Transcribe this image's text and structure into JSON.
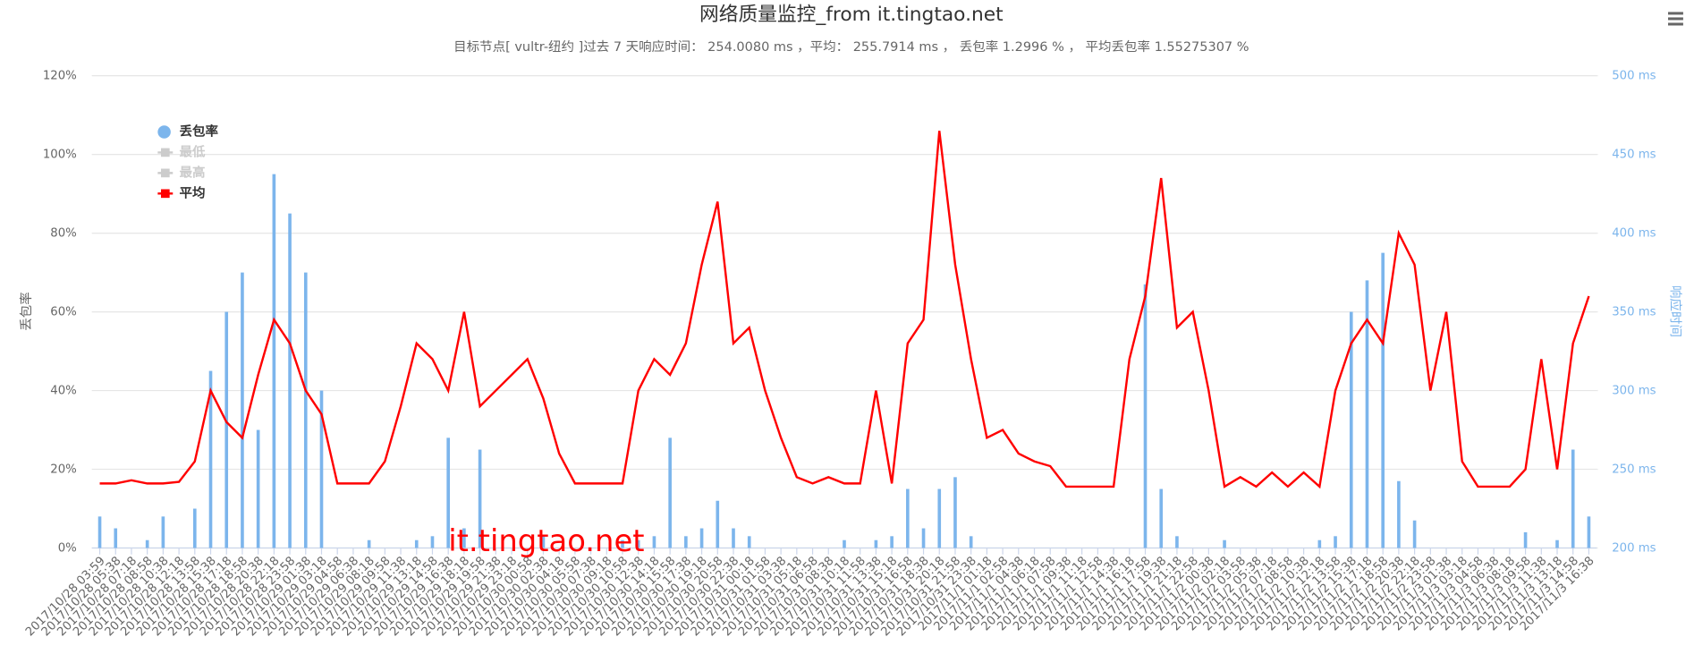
{
  "chart_data": {
    "type": "combo",
    "title": "网络质量监控_from it.tingtao.net",
    "subtitle": "目标节点[ vultr-纽约 ]过去 7 天响应时间： 254.0080 ms ，平均： 255.7914 ms ， 丢包率 1.2996 % ， 平均丢包率 1.55275307 %",
    "ylabel": "丢包率",
    "y2label": "响应时间",
    "watermark": "it.tingtao.net",
    "grid": true,
    "legend": "top-left",
    "ylim": [
      0,
      120
    ],
    "yticks": [
      {
        "value": 0,
        "label": "0%"
      },
      {
        "value": 20,
        "label": "20%"
      },
      {
        "value": 40,
        "label": "40%"
      },
      {
        "value": 60,
        "label": "60%"
      },
      {
        "value": 80,
        "label": "80%"
      },
      {
        "value": 100,
        "label": "100%"
      },
      {
        "value": 120,
        "label": "120%"
      }
    ],
    "y2lim": [
      200,
      500
    ],
    "y2ticks": [
      {
        "value": 200,
        "label": "200 ms"
      },
      {
        "value": 250,
        "label": "250 ms"
      },
      {
        "value": 300,
        "label": "300 ms"
      },
      {
        "value": 350,
        "label": "350 ms"
      },
      {
        "value": 400,
        "label": "400 ms"
      },
      {
        "value": 450,
        "label": "450 ms"
      },
      {
        "value": 500,
        "label": "500 ms"
      }
    ],
    "categories": [
      "2017/10/28 03:59",
      "2017/10/28 05:38",
      "2017/10/28 07:18",
      "2017/10/28 08:58",
      "2017/10/28 10:38",
      "2017/10/28 12:18",
      "2017/10/28 13:58",
      "2017/10/28 15:38",
      "2017/10/28 17:18",
      "2017/10/28 18:58",
      "2017/10/28 20:38",
      "2017/10/28 22:18",
      "2017/10/28 23:58",
      "2017/10/29 01:38",
      "2017/10/29 03:18",
      "2017/10/29 04:58",
      "2017/10/29 06:38",
      "2017/10/29 08:18",
      "2017/10/29 09:58",
      "2017/10/29 11:38",
      "2017/10/29 13:18",
      "2017/10/29 14:58",
      "2017/10/29 16:38",
      "2017/10/29 18:18",
      "2017/10/29 19:58",
      "2017/10/29 21:38",
      "2017/10/29 23:18",
      "2017/10/30 00:58",
      "2017/10/30 02:38",
      "2017/10/30 04:18",
      "2017/10/30 05:58",
      "2017/10/30 07:38",
      "2017/10/30 09:18",
      "2017/10/30 10:58",
      "2017/10/30 12:38",
      "2017/10/30 14:18",
      "2017/10/30 15:58",
      "2017/10/30 17:38",
      "2017/10/30 19:18",
      "2017/10/30 20:58",
      "2017/10/30 22:38",
      "2017/10/31 00:18",
      "2017/10/31 01:58",
      "2017/10/31 03:38",
      "2017/10/31 05:18",
      "2017/10/31 06:58",
      "2017/10/31 08:38",
      "2017/10/31 10:18",
      "2017/10/31 11:58",
      "2017/10/31 13:38",
      "2017/10/31 15:18",
      "2017/10/31 16:58",
      "2017/10/31 18:38",
      "2017/10/31 20:18",
      "2017/10/31 21:58",
      "2017/10/31 23:38",
      "2017/11/1 01:18",
      "2017/11/1 02:58",
      "2017/11/1 04:38",
      "2017/11/1 06:18",
      "2017/11/1 07:58",
      "2017/11/1 09:38",
      "2017/11/1 11:18",
      "2017/11/1 12:58",
      "2017/11/1 14:38",
      "2017/11/1 16:18",
      "2017/11/1 17:58",
      "2017/11/1 19:38",
      "2017/11/1 21:18",
      "2017/11/1 22:58",
      "2017/11/2 00:38",
      "2017/11/2 02:18",
      "2017/11/2 03:58",
      "2017/11/2 05:38",
      "2017/11/2 07:18",
      "2017/11/2 08:58",
      "2017/11/2 10:38",
      "2017/11/2 12:18",
      "2017/11/2 13:58",
      "2017/11/2 15:38",
      "2017/11/2 17:18",
      "2017/11/2 18:58",
      "2017/11/2 20:38",
      "2017/11/2 22:18",
      "2017/11/2 23:58",
      "2017/11/3 01:38",
      "2017/11/3 03:18",
      "2017/11/3 04:58",
      "2017/11/3 06:38",
      "2017/11/3 08:18",
      "2017/11/3 09:58",
      "2017/11/3 11:38",
      "2017/11/3 13:18",
      "2017/11/3 14:58",
      "2017/11/3 16:38"
    ],
    "series": [
      {
        "name": "丢包率",
        "type": "bar",
        "color": "#7cb5ec",
        "axis": "y",
        "values": [
          8,
          5,
          0,
          2,
          8,
          0,
          10,
          45,
          60,
          70,
          30,
          95,
          85,
          70,
          40,
          0,
          0,
          2,
          0,
          0,
          2,
          3,
          28,
          5,
          25,
          0,
          0,
          0,
          3,
          0,
          0,
          0,
          0,
          2,
          2,
          3,
          28,
          3,
          5,
          12,
          5,
          3,
          0,
          0,
          0,
          0,
          0,
          2,
          0,
          2,
          3,
          15,
          5,
          15,
          18,
          3,
          0,
          0,
          0,
          0,
          0,
          0,
          0,
          0,
          0,
          0,
          67,
          15,
          3,
          0,
          0,
          2,
          0,
          0,
          0,
          0,
          0,
          2,
          3,
          60,
          68,
          75,
          17,
          7,
          0,
          0,
          0,
          0,
          0,
          0,
          4,
          0,
          2,
          25,
          8
        ]
      },
      {
        "name": "最低",
        "type": "line",
        "color": "#cccccc",
        "visible": false
      },
      {
        "name": "最高",
        "type": "line",
        "color": "#cccccc",
        "visible": false
      },
      {
        "name": "平均",
        "type": "line",
        "color": "#ff0000",
        "axis": "y2",
        "values": [
          241,
          241,
          243,
          241,
          241,
          242,
          255,
          300,
          280,
          270,
          310,
          345,
          330,
          300,
          285,
          241,
          241,
          241,
          255,
          290,
          330,
          320,
          300,
          350,
          290,
          300,
          310,
          320,
          295,
          260,
          241,
          241,
          241,
          241,
          300,
          320,
          310,
          330,
          380,
          420,
          330,
          340,
          300,
          270,
          245,
          241,
          245,
          241,
          241,
          300,
          241,
          330,
          345,
          465,
          380,
          320,
          270,
          275,
          260,
          255,
          252,
          239,
          239,
          239,
          239,
          320,
          360,
          435,
          340,
          350,
          300,
          239,
          245,
          239,
          248,
          239,
          248,
          239,
          300,
          330,
          345,
          330,
          400,
          380,
          300,
          350,
          255,
          239,
          239,
          239,
          250,
          320,
          250,
          330,
          360
        ]
      }
    ]
  }
}
